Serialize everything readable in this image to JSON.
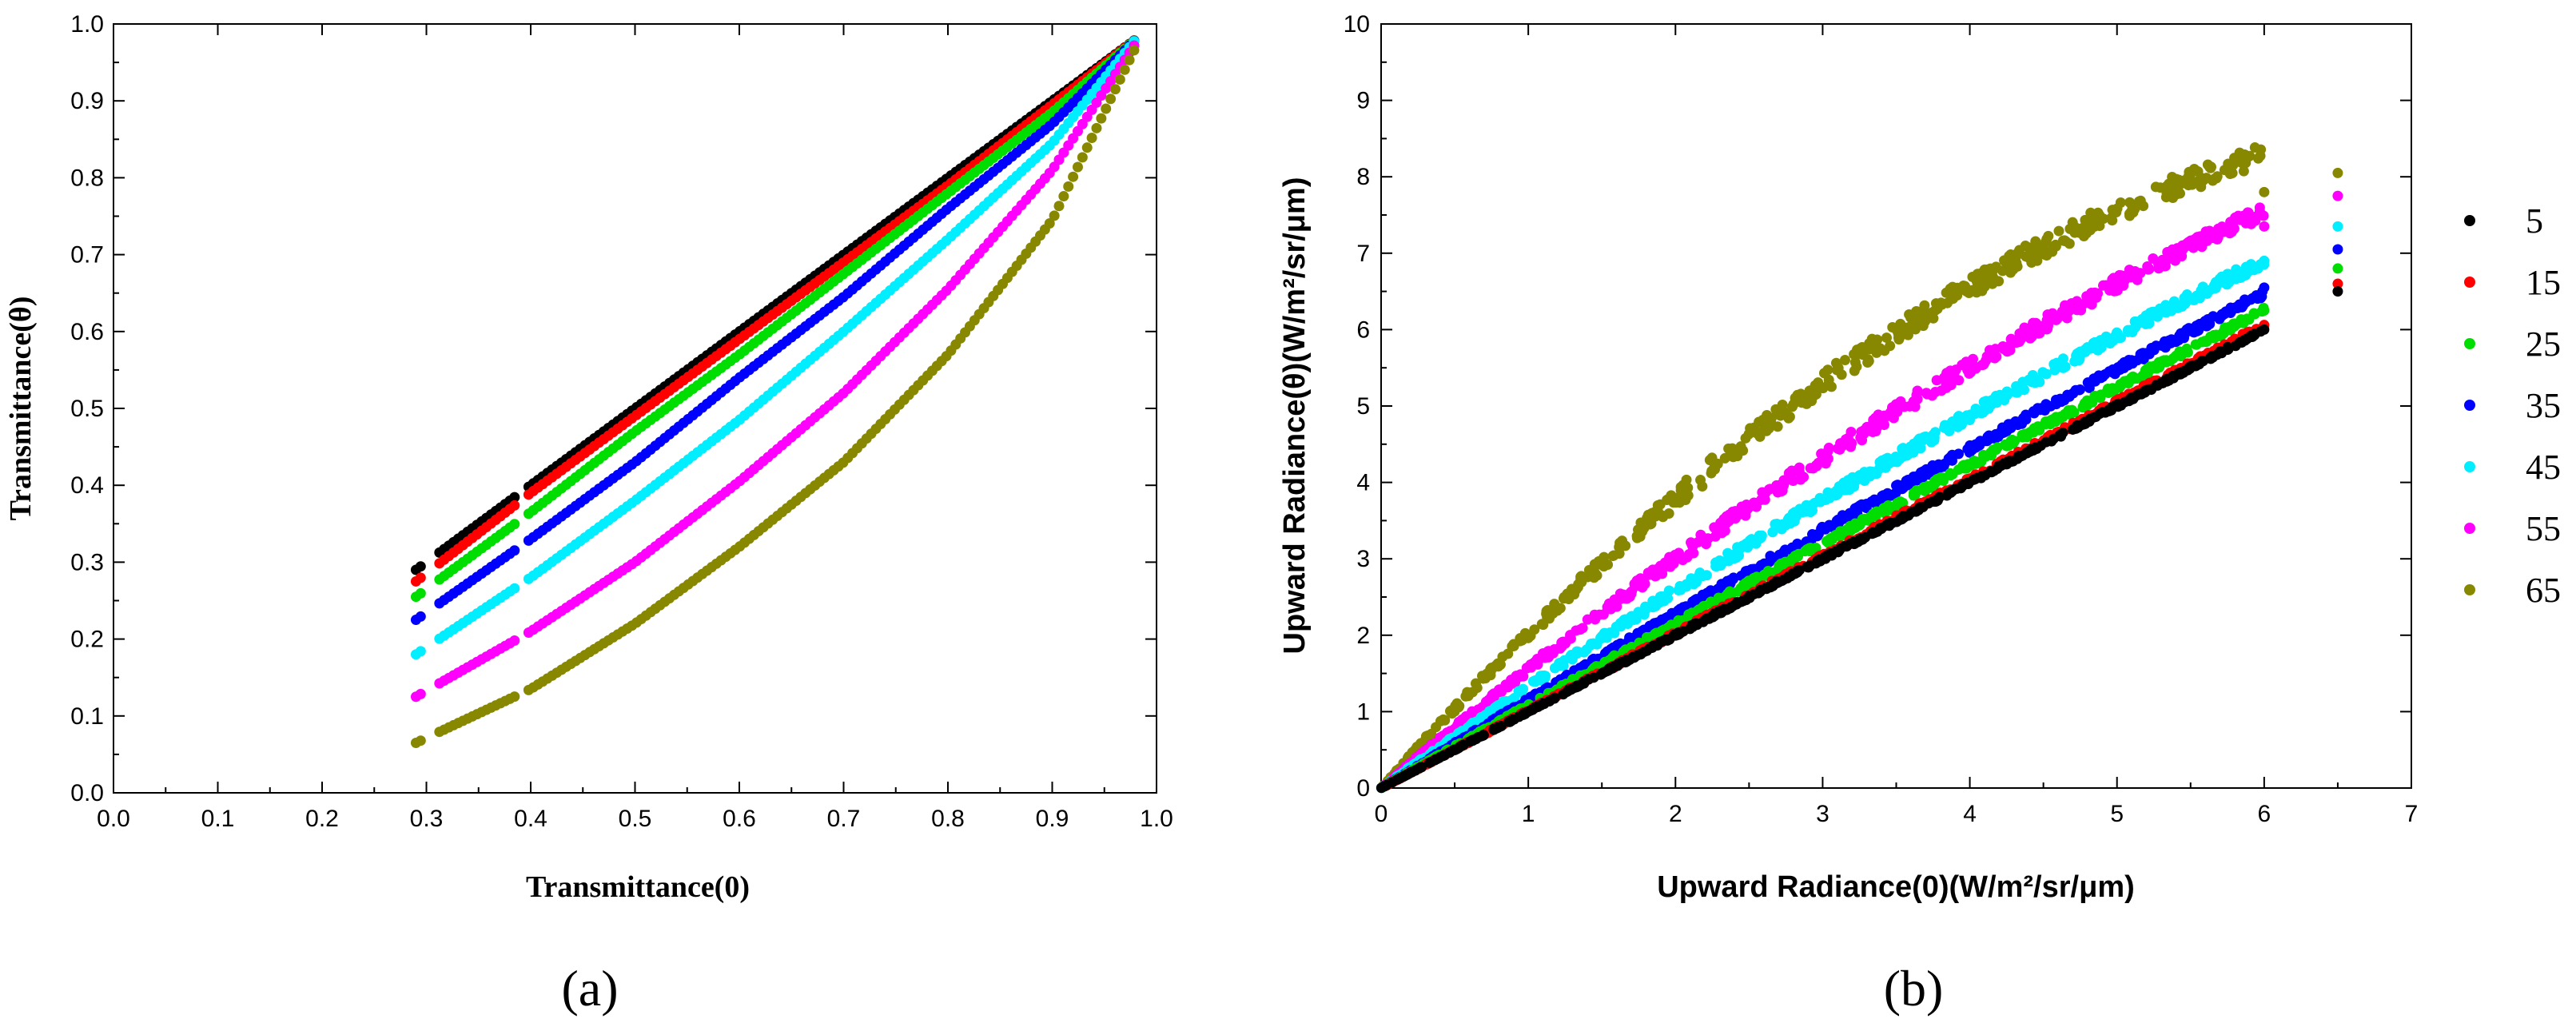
{
  "chart_data": [
    {
      "type": "scatter",
      "panel_label": "(a)",
      "xlabel": "Transmittance(0)",
      "ylabel": "Transmittance(θ)",
      "xlim": [
        0.0,
        1.0
      ],
      "ylim": [
        0.0,
        1.0
      ],
      "xticks": [
        "0.0",
        "0.1",
        "0.2",
        "0.3",
        "0.4",
        "0.5",
        "0.6",
        "0.7",
        "0.8",
        "0.9",
        "1.0"
      ],
      "yticks": [
        "0.0",
        "0.1",
        "0.2",
        "0.3",
        "0.4",
        "0.5",
        "0.6",
        "0.7",
        "0.8",
        "0.9",
        "1.0"
      ],
      "series": [
        {
          "name": "5",
          "color": "#000000",
          "x": [
            0.29,
            0.4,
            0.5,
            0.6,
            0.7,
            0.8,
            0.9,
            0.98
          ],
          "y": [
            0.29,
            0.4,
            0.5,
            0.6,
            0.7,
            0.8,
            0.9,
            0.98
          ]
        },
        {
          "name": "15",
          "color": "#ff0000",
          "x": [
            0.29,
            0.4,
            0.5,
            0.6,
            0.7,
            0.8,
            0.9,
            0.98
          ],
          "y": [
            0.275,
            0.39,
            0.49,
            0.59,
            0.69,
            0.79,
            0.895,
            0.98
          ]
        },
        {
          "name": "25",
          "color": "#00dd00",
          "x": [
            0.29,
            0.4,
            0.5,
            0.6,
            0.7,
            0.8,
            0.9,
            0.98
          ],
          "y": [
            0.255,
            0.365,
            0.47,
            0.57,
            0.675,
            0.78,
            0.885,
            0.98
          ]
        },
        {
          "name": "35",
          "color": "#0000ff",
          "x": [
            0.29,
            0.4,
            0.5,
            0.6,
            0.7,
            0.8,
            0.9,
            0.98
          ],
          "y": [
            0.225,
            0.33,
            0.43,
            0.54,
            0.645,
            0.76,
            0.87,
            0.98
          ]
        },
        {
          "name": "45",
          "color": "#00eeff",
          "x": [
            0.29,
            0.4,
            0.5,
            0.6,
            0.7,
            0.8,
            0.9,
            0.98
          ],
          "y": [
            0.18,
            0.28,
            0.38,
            0.485,
            0.6,
            0.72,
            0.845,
            0.98
          ]
        },
        {
          "name": "55",
          "color": "#ff00ff",
          "x": [
            0.29,
            0.4,
            0.5,
            0.6,
            0.7,
            0.8,
            0.9,
            0.98
          ],
          "y": [
            0.125,
            0.21,
            0.3,
            0.405,
            0.52,
            0.655,
            0.81,
            0.975
          ]
        },
        {
          "name": "65",
          "color": "#888800",
          "x": [
            0.29,
            0.4,
            0.5,
            0.6,
            0.7,
            0.8,
            0.9,
            0.98
          ],
          "y": [
            0.065,
            0.135,
            0.22,
            0.32,
            0.43,
            0.57,
            0.745,
            0.97
          ]
        }
      ]
    },
    {
      "type": "scatter",
      "panel_label": "(b)",
      "xlabel": "Upward Radiance(0)(W/m²/sr/μm)",
      "ylabel": "Upward Radiance(θ)(W/m²/sr/μm)",
      "xlim": [
        0,
        7
      ],
      "ylim": [
        0,
        10
      ],
      "xticks": [
        "0",
        "1",
        "2",
        "3",
        "4",
        "5",
        "6",
        "7"
      ],
      "yticks": [
        "0",
        "1",
        "2",
        "3",
        "4",
        "5",
        "6",
        "7",
        "8",
        "9",
        "10"
      ],
      "series": [
        {
          "name": "5",
          "color": "#000000",
          "slope": 1.0,
          "curv": 0.0,
          "noise": 0.02,
          "end_y": 6.0,
          "legend_y": 6.5
        },
        {
          "name": "15",
          "color": "#ff0000",
          "slope": 1.01,
          "curv": 0.0,
          "noise": 0.03,
          "end_y": 6.06,
          "legend_y": 6.6
        },
        {
          "name": "25",
          "color": "#00dd00",
          "slope": 1.09,
          "curv": 0.008,
          "noise": 0.04,
          "end_y": 6.25,
          "legend_y": 6.8
        },
        {
          "name": "35",
          "color": "#0000ff",
          "slope": 1.17,
          "curv": 0.015,
          "noise": 0.05,
          "end_y": 6.55,
          "legend_y": 7.05
        },
        {
          "name": "45",
          "color": "#00eeff",
          "slope": 1.36,
          "curv": 0.035,
          "noise": 0.07,
          "end_y": 6.9,
          "legend_y": 7.35
        },
        {
          "name": "55",
          "color": "#ff00ff",
          "slope": 1.62,
          "curv": 0.06,
          "noise": 0.1,
          "end_y": 7.35,
          "legend_y": 7.75
        },
        {
          "name": "65",
          "color": "#888800",
          "slope": 2.15,
          "curv": 0.128,
          "noise": 0.14,
          "end_y": 7.8,
          "legend_y": 8.05
        }
      ],
      "legend": {
        "placement": "right",
        "entries": [
          "5",
          "15",
          "25",
          "35",
          "45",
          "55",
          "65"
        ]
      }
    }
  ]
}
